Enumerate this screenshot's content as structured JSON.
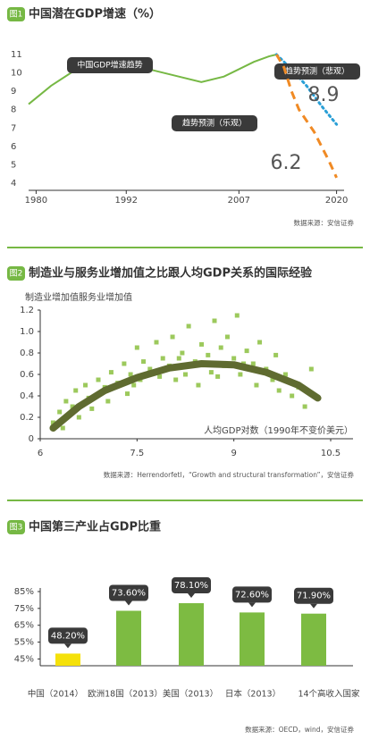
{
  "chart_data": [
    {
      "type": "line",
      "badge": "图1",
      "title": "中国潜在GDP增速（%）",
      "xlim": [
        1979,
        2021
      ],
      "xticks": [
        1980,
        1992,
        2007,
        2020
      ],
      "ylim": [
        4,
        11
      ],
      "yticks": [
        4,
        5,
        6,
        7,
        8,
        9,
        10,
        11
      ],
      "series": [
        {
          "name": "中国GDP增速趋势",
          "color": "#76b844",
          "style": "solid",
          "x": [
            1979,
            1982,
            1985,
            1990,
            1995,
            1999,
            2002,
            2005,
            2009,
            2011,
            2012
          ],
          "values": [
            8.3,
            9.3,
            10.1,
            10.2,
            10.2,
            9.8,
            9.5,
            9.8,
            10.6,
            10.9,
            11.0
          ]
        },
        {
          "name": "趋势预测（悲观）",
          "color": "#2a9fd6",
          "style": "dotted",
          "x": [
            2012,
            2014,
            2016,
            2018,
            2020
          ],
          "values": [
            11.0,
            10.2,
            9.3,
            8.2,
            7.2
          ]
        },
        {
          "name": "趋势预测（乐观）",
          "color": "#f08a24",
          "style": "dashed",
          "x": [
            2012,
            2013,
            2014,
            2015,
            2017,
            2019,
            2020
          ],
          "values": [
            11.0,
            10.3,
            9.0,
            8.0,
            6.8,
            5.2,
            4.3
          ]
        }
      ],
      "annotations": [
        "8.9",
        "6.2"
      ],
      "source": "数据来源：安信证券"
    },
    {
      "type": "scatter",
      "badge": "图2",
      "title": "制造业与服务业增加值之比跟人均GDP关系的国际经验",
      "ylabel": "制造业增加值服务业增加值",
      "xlabel": "人均GDP对数（1990年不变价美元）",
      "xlim": [
        6,
        10.5
      ],
      "xticks": [
        6,
        7.5,
        9,
        10.5
      ],
      "ylim": [
        0,
        1.2
      ],
      "yticks": [
        0,
        0.2,
        0.4,
        0.6,
        0.8,
        {
          "value": 1,
          "label": "1.0"
        },
        1.2
      ],
      "series": [
        {
          "mark": "point",
          "color": "#9cc95c",
          "x": [
            6.2,
            6.3,
            6.35,
            6.4,
            6.5,
            6.55,
            6.6,
            6.7,
            6.75,
            6.8,
            6.9,
            7.0,
            7.05,
            7.1,
            7.2,
            7.3,
            7.35,
            7.4,
            7.5,
            7.55,
            7.6,
            7.7,
            7.8,
            7.85,
            7.9,
            8.0,
            8.05,
            8.1,
            8.2,
            8.25,
            8.3,
            8.4,
            8.45,
            8.5,
            8.6,
            8.65,
            8.7,
            8.8,
            8.85,
            8.9,
            9.0,
            9.05,
            9.1,
            9.2,
            9.3,
            9.35,
            9.4,
            9.5,
            9.6,
            9.65,
            9.7,
            9.8,
            9.9,
            10.0,
            10.1,
            10.2,
            7.45,
            8.15,
            8.75,
            9.15
          ],
          "values": [
            0.15,
            0.25,
            0.1,
            0.35,
            0.3,
            0.45,
            0.2,
            0.5,
            0.38,
            0.28,
            0.55,
            0.48,
            0.35,
            0.62,
            0.52,
            0.7,
            0.42,
            0.6,
            0.85,
            0.55,
            0.72,
            0.65,
            0.9,
            0.58,
            0.75,
            0.68,
            0.95,
            0.55,
            0.8,
            0.6,
            1.05,
            0.72,
            0.5,
            0.88,
            0.78,
            0.62,
            1.1,
            0.85,
            0.68,
            0.95,
            0.75,
            1.15,
            0.6,
            0.82,
            0.7,
            0.5,
            0.9,
            0.65,
            0.55,
            0.78,
            0.45,
            0.6,
            0.4,
            0.48,
            0.3,
            0.65,
            0.5,
            0.75,
            0.58,
            0.7
          ]
        },
        {
          "mark": "line",
          "color": "#5f6b30",
          "x": [
            6.2,
            6.6,
            7.0,
            7.5,
            8.0,
            8.5,
            9.0,
            9.5,
            10.0,
            10.3
          ],
          "values": [
            0.1,
            0.3,
            0.45,
            0.57,
            0.66,
            0.7,
            0.69,
            0.62,
            0.5,
            0.38
          ]
        }
      ],
      "source": "数据来源：Herrendorfetl，“Growth and structural transformation”，安信证券"
    },
    {
      "type": "bar",
      "badge": "图3",
      "title": "中国第三产业占GDP比重",
      "categories": [
        "中国（2014）",
        "欧洲18国（2013）",
        "美国（2013）",
        "日本（2013）",
        "14个高收入国家"
      ],
      "values": [
        48.2,
        73.6,
        78.1,
        72.6,
        71.9
      ],
      "value_labels": [
        "48.20%",
        "73.60%",
        "78.10%",
        "72.60%",
        "71.90%"
      ],
      "colors": [
        "#f5e10a",
        "#7dbb42",
        "#7dbb42",
        "#7dbb42",
        "#7dbb42"
      ],
      "ylim": [
        41,
        85
      ],
      "yticks": [
        {
          "value": 45,
          "label": "45%"
        },
        {
          "value": 55,
          "label": "55%"
        },
        {
          "value": 65,
          "label": "65%"
        },
        {
          "value": 75,
          "label": "75%"
        },
        {
          "value": 85,
          "label": "85%"
        }
      ],
      "source": "数据来源：OECD，wind，安信证券"
    }
  ]
}
